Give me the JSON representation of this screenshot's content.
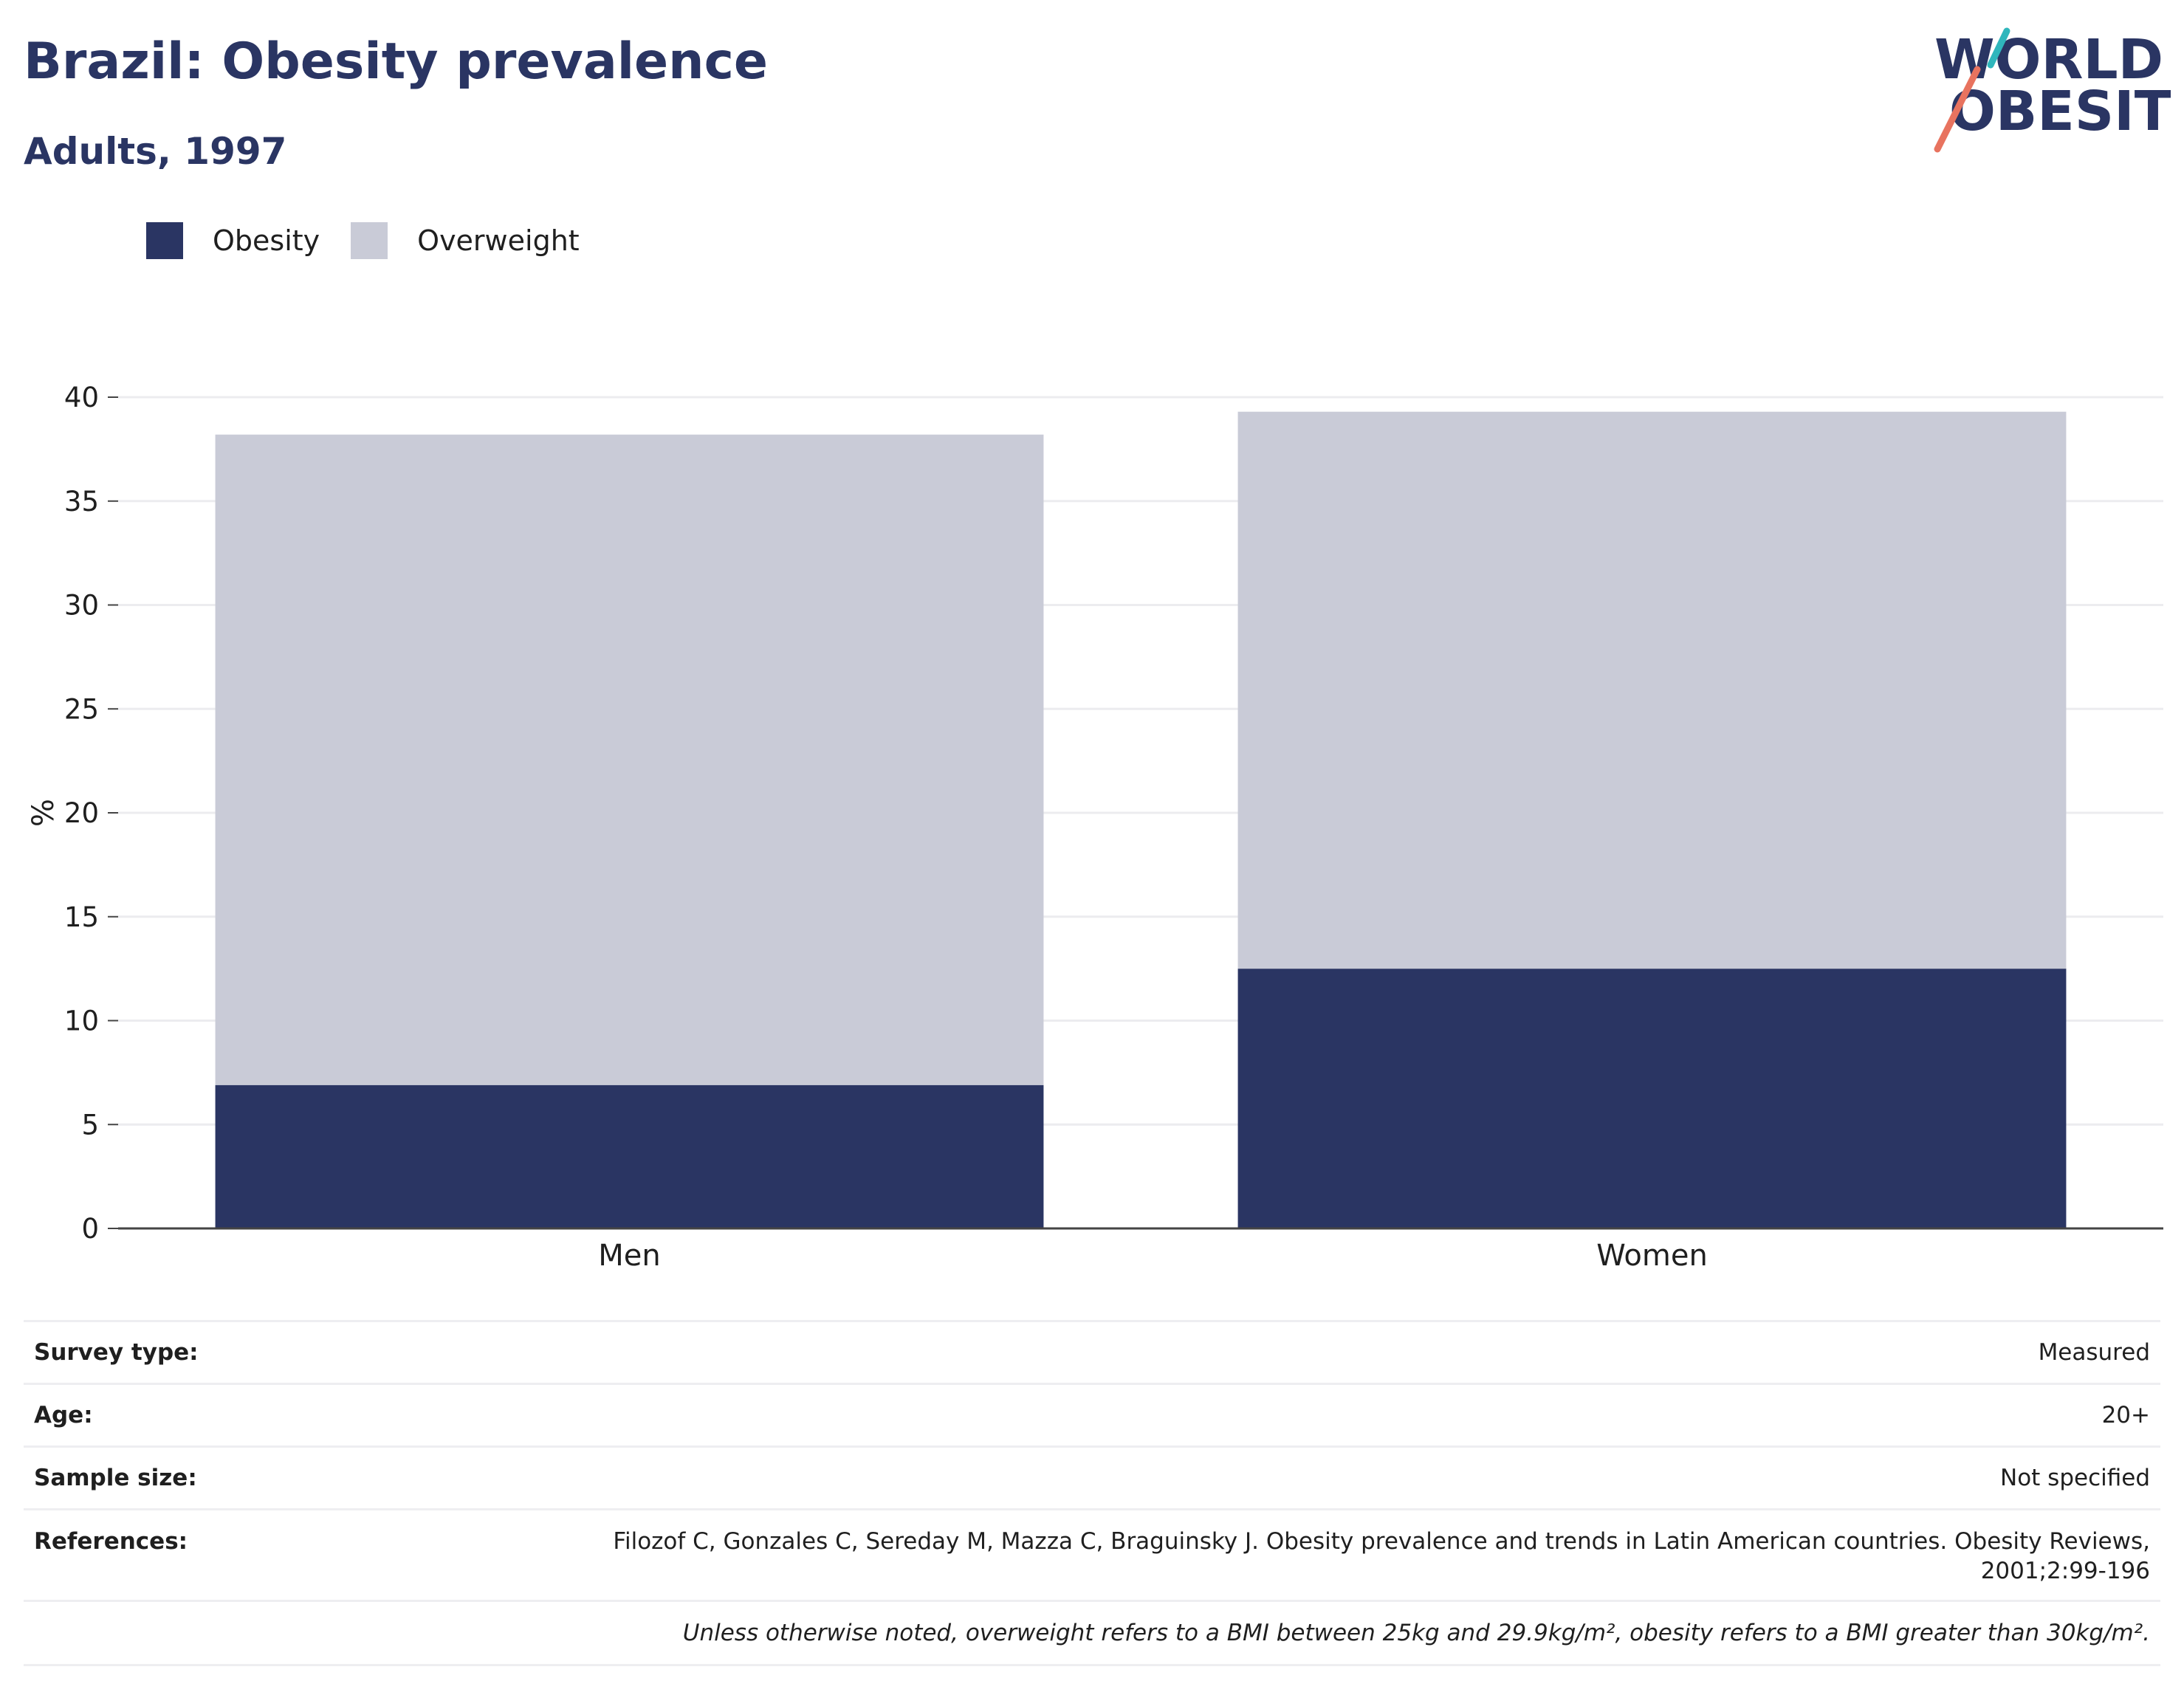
{
  "title": "Brazil: Obesity prevalence",
  "subtitle": "Adults, 1997",
  "logo": {
    "line1": "WORLD",
    "line2": "OBESITY",
    "accent_teal": "#2fb6bc",
    "accent_coral": "#e8735f"
  },
  "colors": {
    "obesity": "#2a3563",
    "overweight": "#c9cbd7",
    "text": "#2a3563"
  },
  "legend": [
    {
      "label": "Obesity",
      "color": "#2a3563"
    },
    {
      "label": "Overweight",
      "color": "#c9cbd7"
    }
  ],
  "chart_data": {
    "type": "bar",
    "stacked": true,
    "categories": [
      "Men",
      "Women"
    ],
    "series": [
      {
        "name": "Obesity",
        "values": [
          6.9,
          12.5
        ]
      },
      {
        "name": "Overweight",
        "values": [
          31.3,
          26.8
        ]
      }
    ],
    "ylabel": "%",
    "ylim": [
      0,
      40
    ],
    "yticks": [
      0,
      5,
      10,
      15,
      20,
      25,
      30,
      35,
      40
    ],
    "grid": true,
    "legend_position": "top-left"
  },
  "info": {
    "survey_type": {
      "label": "Survey type:",
      "value": "Measured"
    },
    "age": {
      "label": "Age:",
      "value": "20+"
    },
    "sample_size": {
      "label": "Sample size:",
      "value": "Not specified"
    },
    "references": {
      "label": "References:",
      "line1": "Filozof C, Gonzales C, Sereday M, Mazza C, Braguinsky J. Obesity prevalence and trends in Latin American countries. Obesity Reviews,",
      "line2": "2001;2:99-196"
    },
    "footnote": "Unless otherwise noted, overweight refers to a BMI between 25kg and 29.9kg/m², obesity refers to a BMI greater than 30kg/m²."
  }
}
